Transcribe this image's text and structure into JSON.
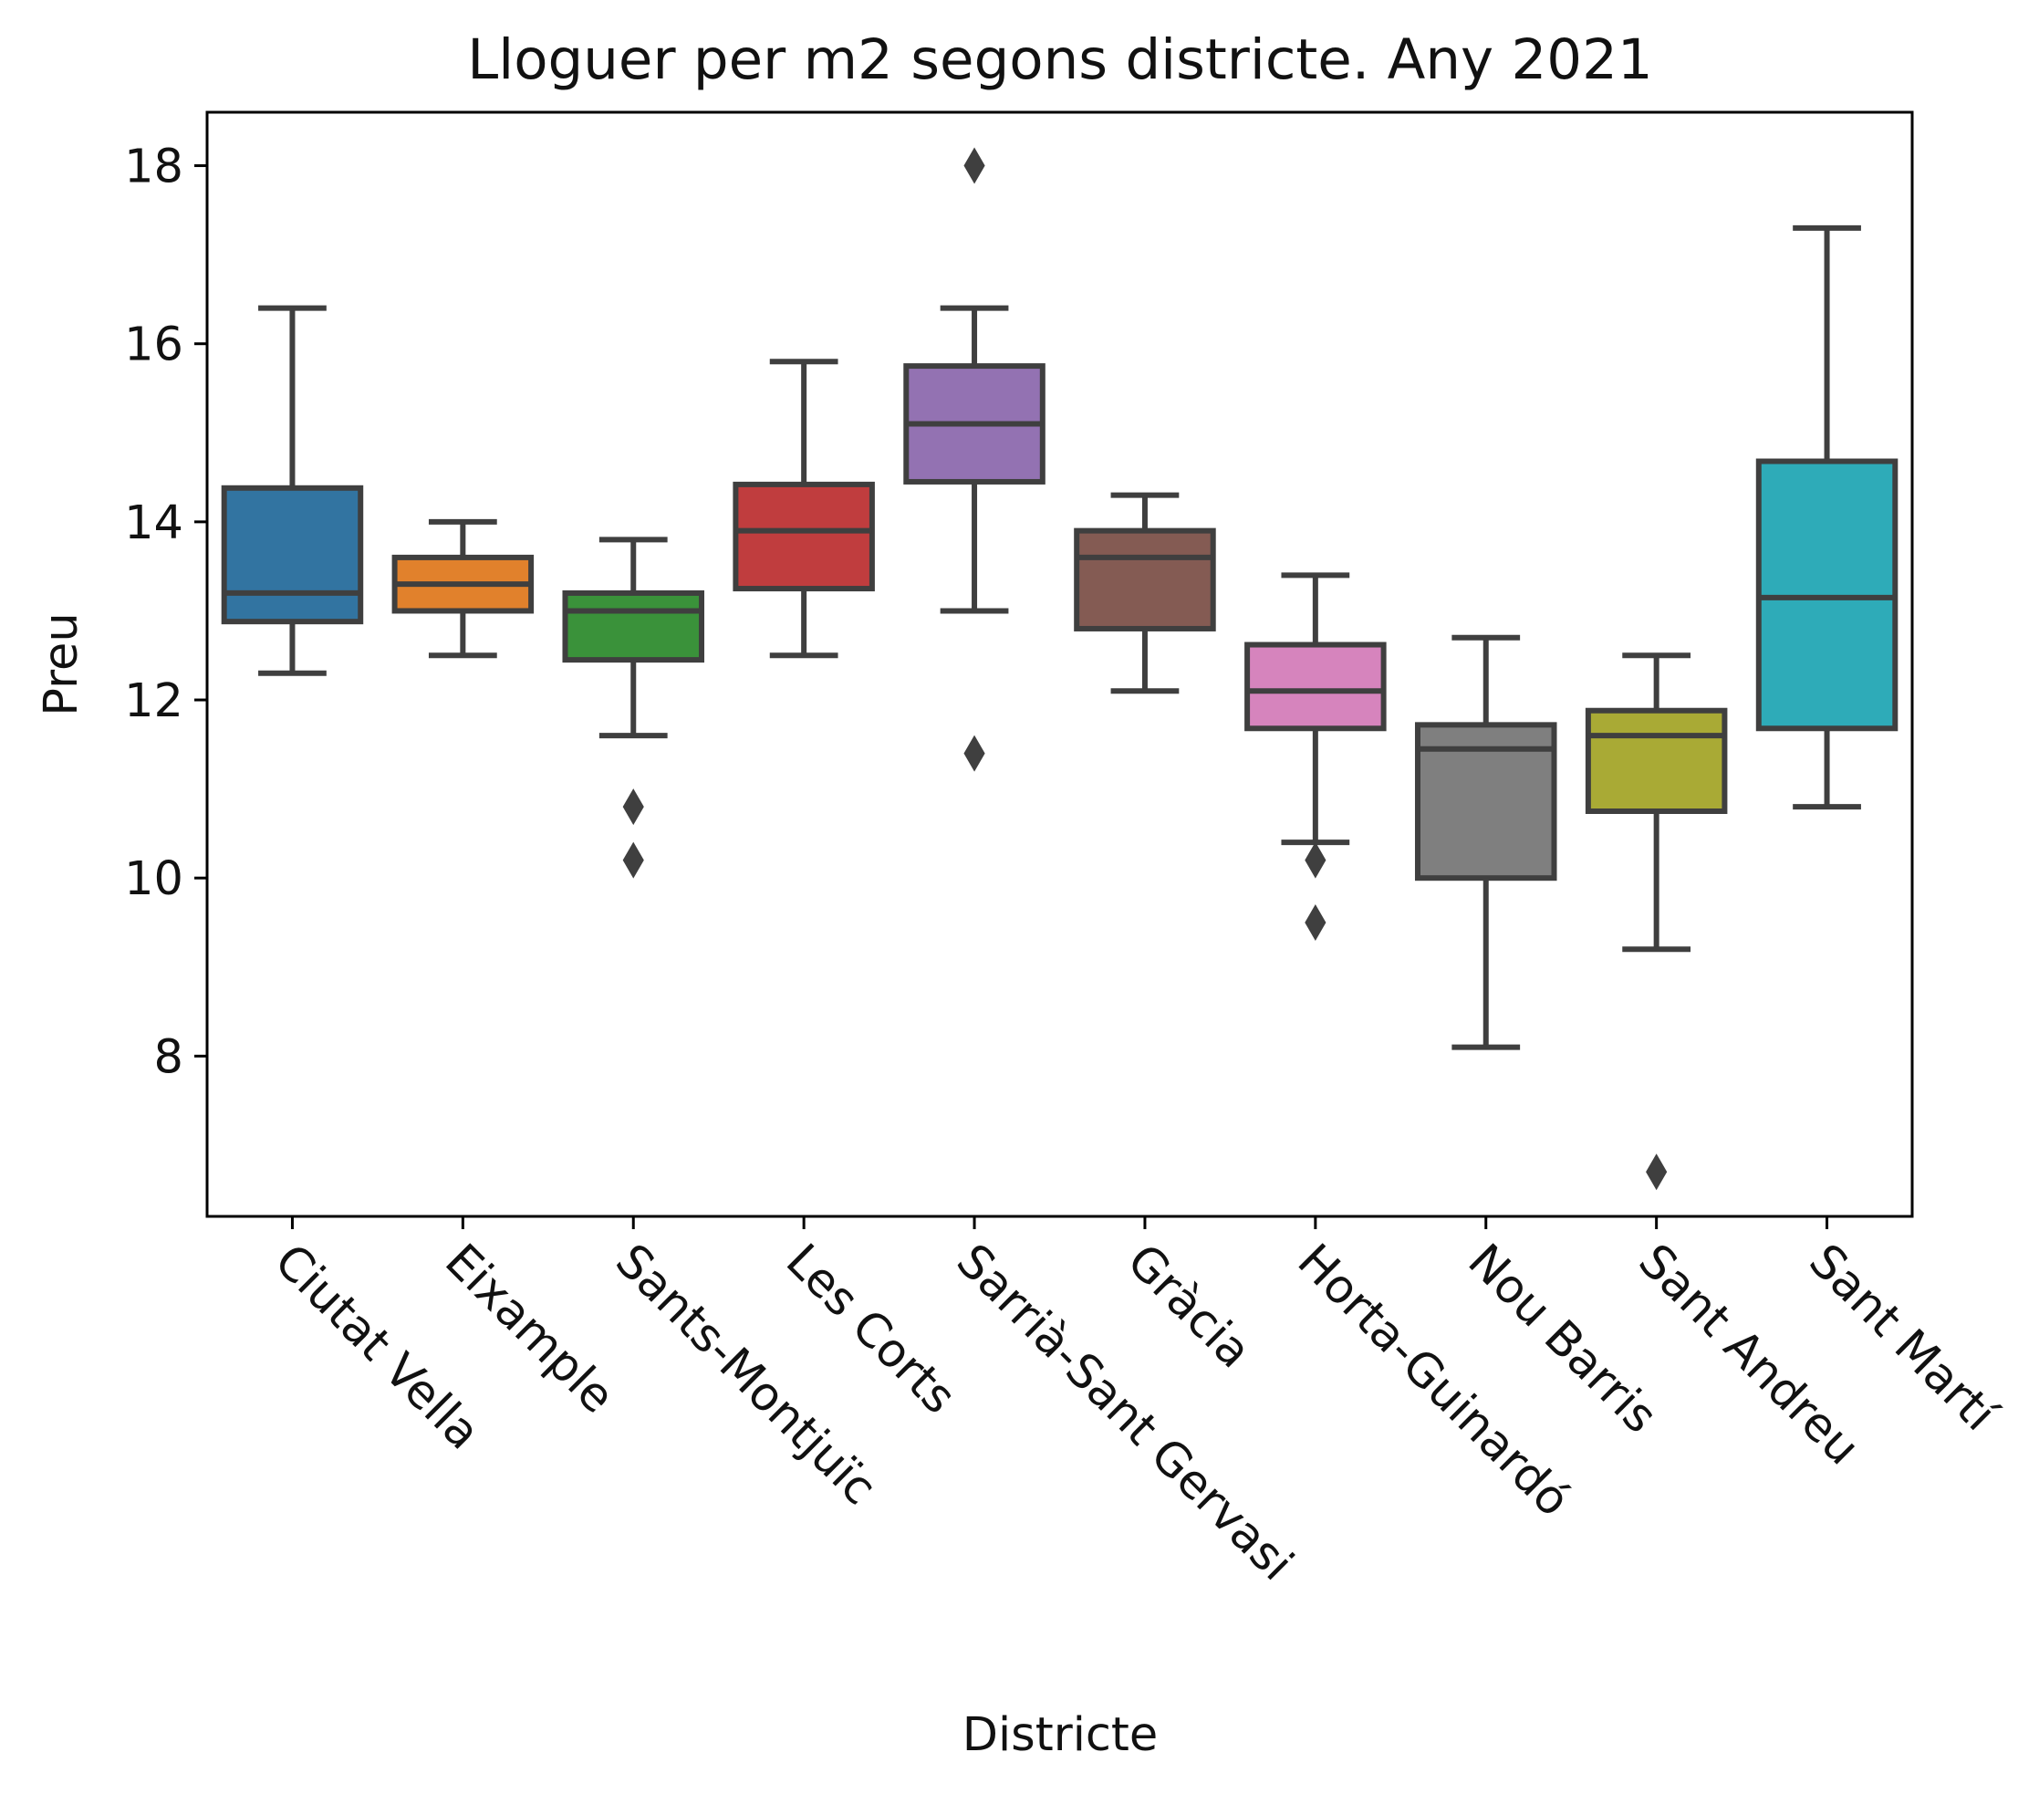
{
  "chart_data": {
    "type": "box",
    "title": "Lloguer per m2 segons districte. Any 2021",
    "xlabel": "Districte",
    "ylabel": "Preu",
    "ylim": [
      6.2,
      18.6
    ],
    "yticks": [
      8,
      10,
      12,
      14,
      16,
      18
    ],
    "grid": false,
    "categories": [
      "Ciutat Vella",
      "Eixample",
      "Sants-Montjuïc",
      "Les Corts",
      "Sarrià-Sant Gervasi",
      "Gràcia",
      "Horta-Guinardó",
      "Nou Barris",
      "Sant Andreu",
      "Sant Martí"
    ],
    "colors": [
      "#3274a1",
      "#e1812c",
      "#3a923a",
      "#c03d3e",
      "#9372b2",
      "#845b53",
      "#d684bd",
      "#7f7f7f",
      "#a9aa35",
      "#2eabb8"
    ],
    "boxes": [
      {
        "whisker_low": 12.3,
        "q1": 12.88,
        "median": 13.2,
        "q3": 14.38,
        "whisker_high": 16.4,
        "outliers": []
      },
      {
        "whisker_low": 12.5,
        "q1": 13.0,
        "median": 13.3,
        "q3": 13.6,
        "whisker_high": 14.0,
        "outliers": []
      },
      {
        "whisker_low": 11.6,
        "q1": 12.45,
        "median": 13.0,
        "q3": 13.2,
        "whisker_high": 13.8,
        "outliers": [
          10.8,
          10.2
        ]
      },
      {
        "whisker_low": 12.5,
        "q1": 13.25,
        "median": 13.9,
        "q3": 14.42,
        "whisker_high": 15.8,
        "outliers": []
      },
      {
        "whisker_low": 13.0,
        "q1": 14.45,
        "median": 15.1,
        "q3": 15.75,
        "whisker_high": 16.4,
        "outliers": [
          18.0,
          11.4
        ]
      },
      {
        "whisker_low": 12.1,
        "q1": 12.8,
        "median": 13.6,
        "q3": 13.9,
        "whisker_high": 14.3,
        "outliers": []
      },
      {
        "whisker_low": 10.4,
        "q1": 11.68,
        "median": 12.1,
        "q3": 12.62,
        "whisker_high": 13.4,
        "outliers": [
          10.2,
          9.5
        ]
      },
      {
        "whisker_low": 8.1,
        "q1": 10.0,
        "median": 11.45,
        "q3": 11.72,
        "whisker_high": 12.7,
        "outliers": []
      },
      {
        "whisker_low": 9.2,
        "q1": 10.75,
        "median": 11.6,
        "q3": 11.88,
        "whisker_high": 12.5,
        "outliers": [
          6.7
        ]
      },
      {
        "whisker_low": 10.8,
        "q1": 11.68,
        "median": 13.15,
        "q3": 14.68,
        "whisker_high": 17.3,
        "outliers": []
      }
    ]
  }
}
